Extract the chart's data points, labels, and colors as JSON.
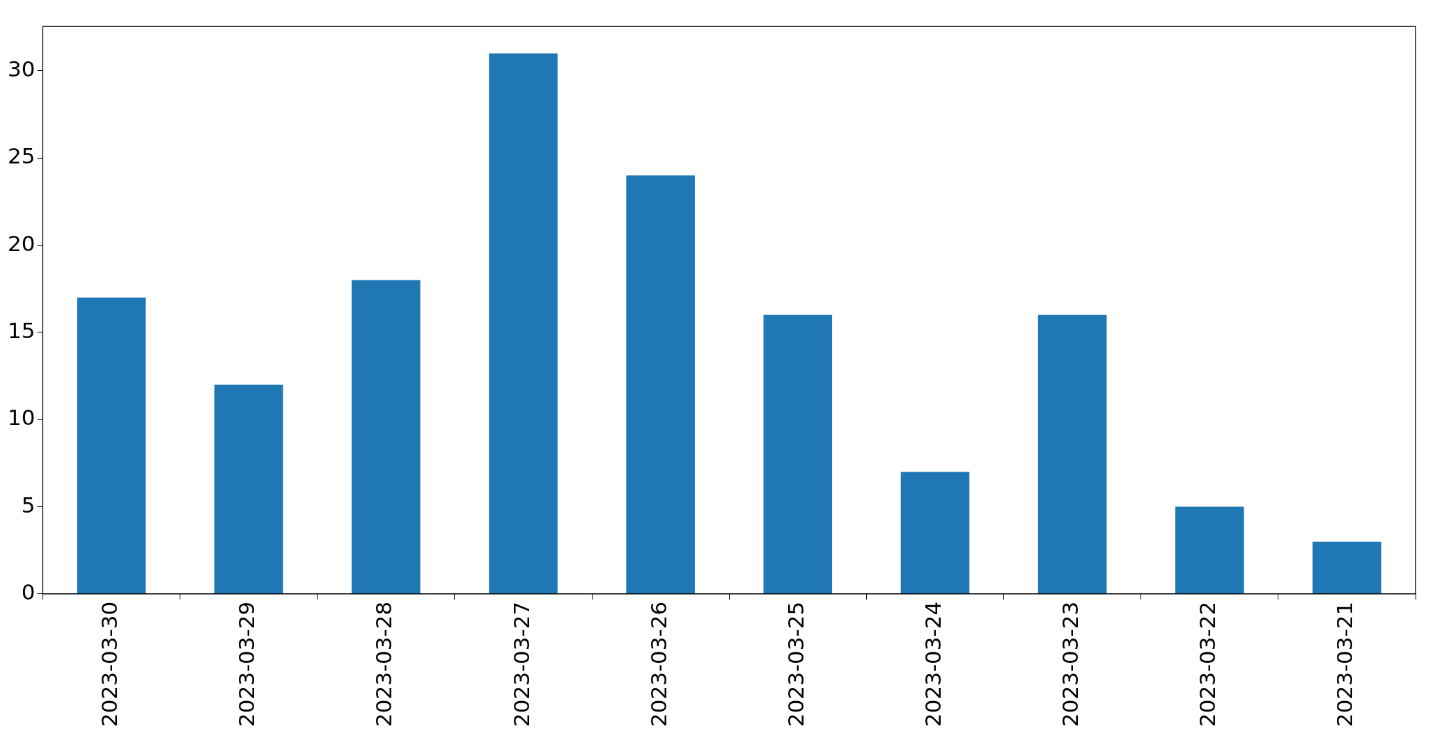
{
  "chart_data": {
    "type": "bar",
    "categories": [
      "2023-03-30",
      "2023-03-29",
      "2023-03-28",
      "2023-03-27",
      "2023-03-26",
      "2023-03-25",
      "2023-03-24",
      "2023-03-23",
      "2023-03-22",
      "2023-03-21"
    ],
    "values": [
      17,
      12,
      18,
      31,
      24,
      16,
      7,
      16,
      5,
      3
    ],
    "color": "#1f77b4",
    "ylim": [
      0,
      32.55
    ],
    "yticks": [
      0,
      5,
      10,
      15,
      20,
      25,
      30
    ],
    "grid": false
  }
}
